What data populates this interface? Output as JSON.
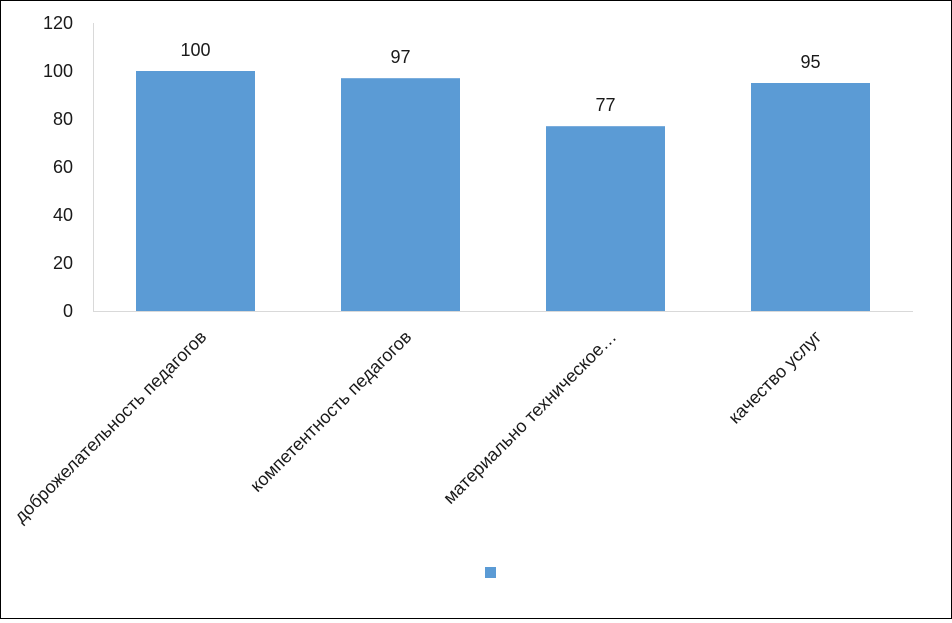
{
  "chart_data": {
    "type": "bar",
    "categories": [
      "доброжелательность педагогов",
      "компетентность педагогов",
      "материально техническое…",
      "качество услуг"
    ],
    "values": [
      100,
      97,
      77,
      95
    ],
    "data_labels": [
      "100",
      "97",
      "77",
      "95"
    ],
    "y_ticks": [
      "0",
      "20",
      "40",
      "60",
      "80",
      "100",
      "120"
    ],
    "ylim": [
      0,
      120
    ],
    "title": "",
    "xlabel": "",
    "ylabel": "",
    "grid": false,
    "legend_position": "bottom",
    "bar_color": "#5B9BD5",
    "axis_color": "#D9D9D9"
  }
}
